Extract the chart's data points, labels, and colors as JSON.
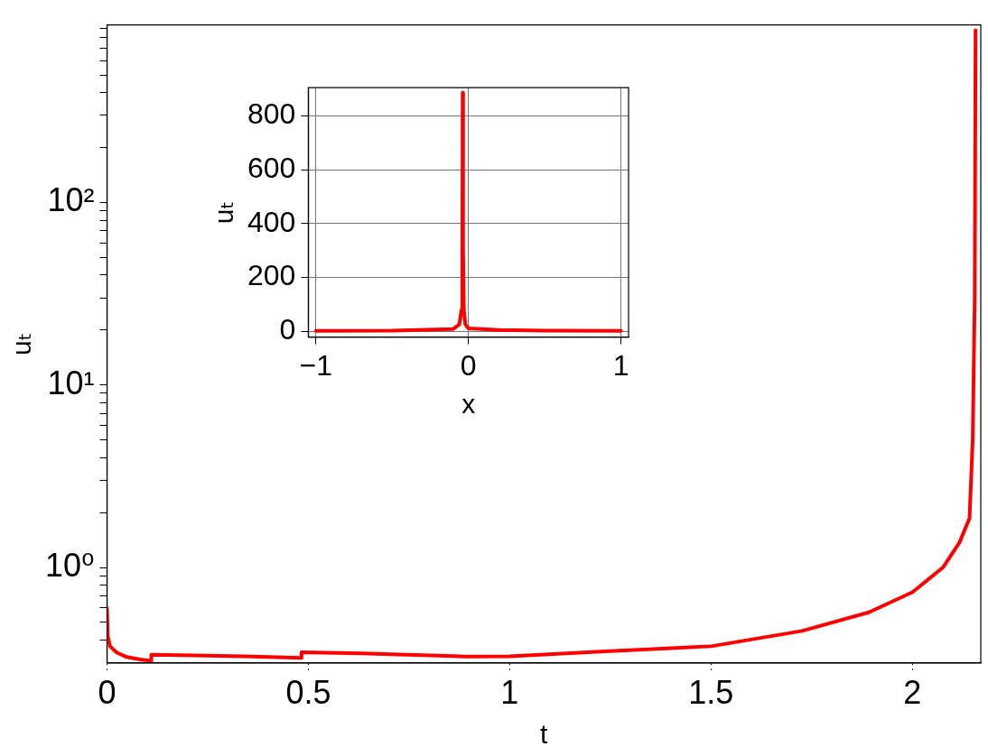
{
  "chart_data": [
    {
      "type": "line",
      "xlabel": "t",
      "ylabel": "uₜ",
      "log": "y",
      "marker": "none",
      "xlim": [
        0,
        2.17
      ],
      "ylim": [
        0.307,
        940
      ],
      "xticks": [
        0,
        0.5,
        1,
        1.5,
        2
      ],
      "yticks": [
        {
          "value": 0.4,
          "label": null
        },
        {
          "value": 0.5,
          "label": null
        },
        {
          "value": 0.6,
          "label": null
        },
        {
          "value": 0.7,
          "label": null
        },
        {
          "value": 0.8,
          "label": null
        },
        {
          "value": 0.9,
          "label": null
        },
        {
          "value": 1,
          "label": "10⁰"
        },
        {
          "value": 2,
          "label": null
        },
        {
          "value": 3,
          "label": null
        },
        {
          "value": 4,
          "label": null
        },
        {
          "value": 5,
          "label": null
        },
        {
          "value": 6,
          "label": null
        },
        {
          "value": 7,
          "label": null
        },
        {
          "value": 8,
          "label": null
        },
        {
          "value": 9,
          "label": null
        },
        {
          "value": 10,
          "label": "10¹"
        },
        {
          "value": 20,
          "label": null
        },
        {
          "value": 30,
          "label": null
        },
        {
          "value": 40,
          "label": null
        },
        {
          "value": 50,
          "label": null
        },
        {
          "value": 60,
          "label": null
        },
        {
          "value": 70,
          "label": null
        },
        {
          "value": 80,
          "label": null
        },
        {
          "value": 90,
          "label": null
        },
        {
          "value": 100,
          "label": "10²"
        },
        {
          "value": 200,
          "label": null
        },
        {
          "value": 300,
          "label": null
        },
        {
          "value": 400,
          "label": null
        },
        {
          "value": 500,
          "label": null
        },
        {
          "value": 600,
          "label": null
        },
        {
          "value": 700,
          "label": null
        },
        {
          "value": 800,
          "label": null
        },
        {
          "value": 900,
          "label": null
        }
      ],
      "series": [
        {
          "color": "#ff0000",
          "x": [
            0,
            0.002,
            0.0075,
            0.024,
            0.049,
            0.0825,
            0.109,
            0.11,
            0.216,
            0.341,
            0.4825,
            0.483,
            0.6325,
            0.892,
            1.0,
            1.226,
            1.5,
            1.726,
            1.892,
            2.0,
            2.076,
            2.117,
            2.142,
            2.15,
            2.155,
            2.157
          ],
          "values": [
            0.6,
            0.42,
            0.37,
            0.342,
            0.323,
            0.313,
            0.308,
            0.333,
            0.33,
            0.326,
            0.32,
            0.343,
            0.338,
            0.325,
            0.326,
            0.346,
            0.37,
            0.449,
            0.568,
            0.731,
            1.0,
            1.37,
            1.86,
            5,
            30,
            880
          ]
        }
      ]
    },
    {
      "type": "line",
      "xlabel": "x",
      "ylabel": "uₜ",
      "grid": true,
      "marker": "none",
      "xlim": [
        -1.05,
        1.05
      ],
      "ylim": [
        -22,
        905
      ],
      "xticks": [
        {
          "value": -1,
          "label": "−1"
        },
        0,
        1
      ],
      "yticks": [
        0,
        200,
        400,
        600,
        800
      ],
      "series": [
        {
          "color": "#ff0000",
          "x": [
            -1,
            -0.5,
            -0.1,
            -0.06,
            -0.045,
            -0.04,
            -0.038,
            -0.035,
            -0.03,
            -0.02,
            0,
            0.2,
            0.5,
            1
          ],
          "values": [
            1,
            2,
            8,
            25,
            80,
            300,
            886,
            300,
            80,
            25,
            10,
            4,
            2,
            1
          ]
        }
      ]
    }
  ]
}
